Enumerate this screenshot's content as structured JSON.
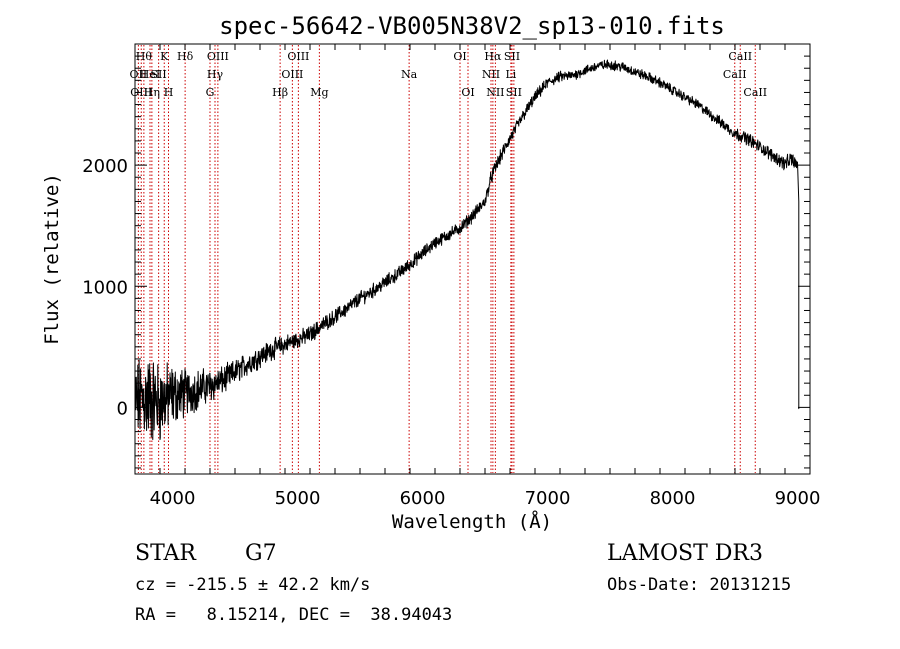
{
  "chart_data": {
    "type": "line",
    "title": "spec-56642-VB005N38V2_sp13-010.fits",
    "xlabel": "Wavelength (Å)",
    "ylabel": "Flux (relative)",
    "xlim": [
      3700,
      9100
    ],
    "ylim": [
      -550,
      3000
    ],
    "x_ticks": [
      4000,
      5000,
      6000,
      7000,
      8000,
      9000
    ],
    "y_ticks": [
      0,
      1000,
      2000
    ],
    "x_tick_labels": [
      "4000",
      "5000",
      "6000",
      "7000",
      "8000",
      "9000"
    ],
    "y_tick_labels": [
      "0",
      "1000",
      "2000"
    ],
    "grid": false,
    "series": [
      {
        "name": "spectrum",
        "x": [
          3700,
          3800,
          3900,
          4000,
          4100,
          4200,
          4300,
          4400,
          4500,
          4600,
          4700,
          4800,
          4900,
          5000,
          5100,
          5200,
          5300,
          5400,
          5500,
          5600,
          5700,
          5800,
          5900,
          6000,
          6100,
          6200,
          6300,
          6400,
          6500,
          6550,
          6600,
          6700,
          6800,
          6900,
          7000,
          7100,
          7200,
          7300,
          7400,
          7500,
          7600,
          7700,
          7800,
          7900,
          8000,
          8100,
          8200,
          8300,
          8400,
          8500,
          8600,
          8700,
          8800,
          8900,
          8950,
          9000,
          9010
        ],
        "y": [
          50,
          80,
          40,
          100,
          120,
          150,
          180,
          220,
          290,
          360,
          420,
          480,
          520,
          560,
          600,
          680,
          750,
          820,
          900,
          960,
          1030,
          1100,
          1180,
          1270,
          1360,
          1420,
          1480,
          1580,
          1700,
          1900,
          2020,
          2220,
          2400,
          2560,
          2680,
          2730,
          2740,
          2780,
          2820,
          2830,
          2810,
          2770,
          2730,
          2680,
          2620,
          2560,
          2500,
          2420,
          2340,
          2260,
          2220,
          2150,
          2080,
          2010,
          2050,
          2000,
          1700
        ],
        "noise_amplitude": [
          260,
          300,
          260,
          200,
          160,
          130,
          110,
          90,
          80,
          75,
          70,
          65,
          60,
          55,
          55,
          50,
          48,
          48,
          46,
          46,
          44,
          44,
          42,
          42,
          40,
          40,
          40,
          40,
          40,
          45,
          45,
          40,
          40,
          38,
          36,
          34,
          32,
          32,
          32,
          32,
          32,
          32,
          32,
          32,
          32,
          32,
          32,
          34,
          36,
          38,
          40,
          40,
          42,
          44,
          46,
          46,
          46
        ]
      }
    ],
    "line_markers": [
      {
        "wavelength": 3727,
        "label": "OII",
        "row": 1
      },
      {
        "wavelength": 3750,
        "label": "OIII",
        "row": 2
      },
      {
        "wavelength": 3771,
        "label": "Hθ",
        "row": 0
      },
      {
        "wavelength": 3820,
        "label": "HeI",
        "row": 1
      },
      {
        "wavelength": 3835,
        "label": "Hη",
        "row": 2
      },
      {
        "wavelength": 3889,
        "label": "SII",
        "row": 1
      },
      {
        "wavelength": 3934,
        "label": "K",
        "row": 0
      },
      {
        "wavelength": 3968,
        "label": "H",
        "row": 2
      },
      {
        "wavelength": 4101,
        "label": "Hδ",
        "row": 0
      },
      {
        "wavelength": 4300,
        "label": "G",
        "row": 2
      },
      {
        "wavelength": 4340,
        "label": "Hγ",
        "row": 1
      },
      {
        "wavelength": 4363,
        "label": "OIII",
        "row": 0
      },
      {
        "wavelength": 4861,
        "label": "Hβ",
        "row": 2
      },
      {
        "wavelength": 4959,
        "label": "OIII",
        "row": 1
      },
      {
        "wavelength": 5007,
        "label": "OIII",
        "row": 0
      },
      {
        "wavelength": 5175,
        "label": "Mg",
        "row": 2
      },
      {
        "wavelength": 5893,
        "label": "Na",
        "row": 1
      },
      {
        "wavelength": 6300,
        "label": "OI",
        "row": 0
      },
      {
        "wavelength": 6364,
        "label": "OI",
        "row": 2
      },
      {
        "wavelength": 6548,
        "label": "NII",
        "row": 1
      },
      {
        "wavelength": 6563,
        "label": "Hα",
        "row": 0
      },
      {
        "wavelength": 6583,
        "label": "NII",
        "row": 2
      },
      {
        "wavelength": 6707,
        "label": "Li",
        "row": 1
      },
      {
        "wavelength": 6716,
        "label": "SII",
        "row": 0
      },
      {
        "wavelength": 6731,
        "label": "SII",
        "row": 2
      },
      {
        "wavelength": 8498,
        "label": "CaII",
        "row": 1
      },
      {
        "wavelength": 8542,
        "label": "CaII",
        "row": 0
      },
      {
        "wavelength": 8662,
        "label": "CaII",
        "row": 2
      }
    ],
    "colors": {
      "spectrum": "#000000",
      "marker": "#cc0000",
      "background": "#ffffff",
      "axis": "#000000"
    }
  },
  "info": {
    "object_class": "STAR",
    "subclass": "G7",
    "survey": "LAMOST DR3",
    "cz": "cz = -215.5 ± 42.2 km/s",
    "obs_date": "Obs-Date: 20131215",
    "coords": "RA =   8.15214, DEC =  38.94043"
  }
}
